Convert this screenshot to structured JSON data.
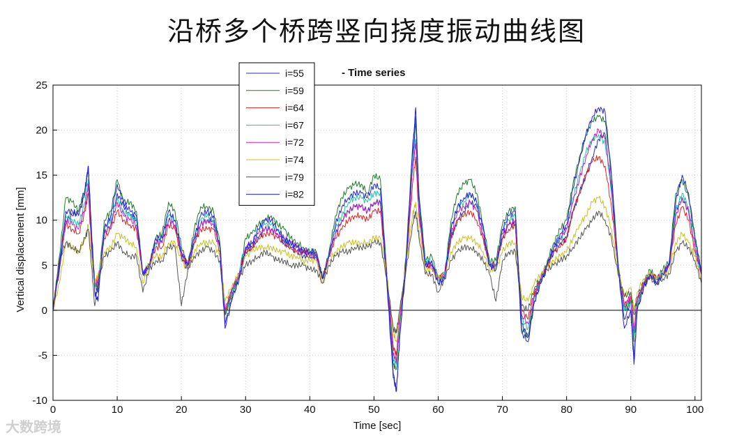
{
  "page": {
    "title": "沿桥多个桥跨竖向挠度振动曲线图",
    "watermark": "大数跨境"
  },
  "chart_data": {
    "type": "line",
    "title": "- Time series",
    "xlabel": "Time [sec]",
    "ylabel": "Vertical displacement [mm]",
    "xlim": [
      0,
      101
    ],
    "ylim": [
      -10,
      25
    ],
    "xticks": [
      0,
      10,
      20,
      30,
      40,
      50,
      60,
      70,
      80,
      90,
      100
    ],
    "yticks": [
      -10,
      -5,
      0,
      5,
      10,
      15,
      20,
      25
    ],
    "grid": true,
    "legend_position": "top-left",
    "x": [
      0,
      1,
      2,
      3,
      4,
      5,
      5.5,
      6,
      6.5,
      7,
      8,
      9,
      10,
      11,
      12,
      13,
      14,
      15,
      16,
      17,
      18,
      19,
      20,
      21,
      22,
      23,
      24,
      25,
      26,
      26.8,
      28,
      29,
      30,
      31,
      32,
      33,
      34,
      35,
      36,
      37,
      38,
      39,
      40,
      41,
      42,
      43,
      44,
      45,
      46,
      47,
      48,
      49,
      50,
      51,
      52,
      53,
      53.5,
      54,
      55,
      56,
      56.5,
      57,
      58,
      59,
      60,
      61,
      62,
      63,
      64,
      65,
      66,
      67,
      68,
      69,
      70,
      71,
      72,
      73,
      74,
      75,
      76,
      77,
      78,
      79,
      80,
      81,
      82,
      83,
      84,
      85,
      86,
      87,
      88,
      89,
      90,
      90.5,
      91,
      92,
      93,
      94,
      95,
      96,
      97,
      98,
      99,
      100,
      101
    ],
    "series": [
      {
        "name": "i=55",
        "color": "#1f2fbf",
        "values": [
          0,
          4.5,
          10,
          10.5,
          11,
          13.5,
          16,
          9,
          3,
          2,
          8.5,
          9.5,
          13,
          11.5,
          10.5,
          10,
          4,
          5,
          7.5,
          7.5,
          10,
          9.5,
          6,
          4.5,
          7.5,
          9.5,
          10,
          10,
          7,
          -1.5,
          1.5,
          3.5,
          6.5,
          7,
          8,
          9,
          9,
          8.5,
          7.5,
          7,
          6.5,
          6,
          6,
          6,
          3.5,
          6,
          8.5,
          10,
          11,
          11.5,
          11.5,
          11,
          12,
          12,
          3,
          -7.5,
          -9,
          -3,
          5,
          16,
          21,
          12,
          5,
          5,
          3,
          3.5,
          8,
          10,
          11,
          12,
          11.5,
          8,
          5,
          5,
          8,
          9.5,
          9.5,
          -2.5,
          -3.5,
          1,
          3,
          5,
          6.5,
          7.5,
          8,
          11,
          13,
          15,
          17,
          19,
          19.5,
          13,
          5,
          -1,
          1,
          -5.5,
          0,
          2.5,
          4,
          3,
          4,
          5,
          11,
          12.5,
          11,
          7,
          4
        ]
      },
      {
        "name": "i=59",
        "color": "#1f7a2a",
        "values": [
          0,
          6,
          12.5,
          12,
          11,
          13.5,
          16,
          8,
          3,
          2.5,
          10,
          11,
          14.5,
          12,
          12,
          11,
          4,
          5,
          8,
          8.5,
          12,
          11,
          7,
          5,
          9,
          11.5,
          11.5,
          11,
          7.5,
          -0.5,
          2,
          4,
          8,
          8.5,
          9.5,
          10,
          10.5,
          9.5,
          9,
          8,
          7.5,
          7,
          6.5,
          6.5,
          3.5,
          6.5,
          10.5,
          12.5,
          13.5,
          14,
          14,
          13,
          15,
          14.5,
          4,
          -6,
          -6.5,
          -1.5,
          6,
          18,
          21.5,
          13,
          5.5,
          6,
          3.5,
          4,
          10,
          13,
          14,
          14.5,
          13,
          9.5,
          5.5,
          5.5,
          9.5,
          11,
          11.5,
          -2,
          -3,
          1.5,
          3.5,
          5.5,
          7.5,
          9,
          10,
          14,
          17,
          19.5,
          21,
          21.5,
          21,
          15,
          5.5,
          0,
          1,
          -3.5,
          0.5,
          3,
          4.5,
          3.5,
          4.5,
          5.5,
          13,
          14.5,
          12.5,
          8,
          4.5
        ]
      },
      {
        "name": "i=64",
        "color": "#e02020",
        "values": [
          0,
          5.5,
          9.5,
          9,
          8.5,
          11,
          13,
          7,
          3,
          3.5,
          8,
          9,
          11,
          10,
          9.5,
          9,
          4,
          5,
          7,
          7,
          9.5,
          9,
          6,
          5,
          7.5,
          9,
          9,
          9,
          6.5,
          0,
          2.5,
          4,
          6.5,
          7,
          8,
          8.5,
          8.5,
          8,
          7.5,
          7,
          6.5,
          6.5,
          6,
          6,
          3.5,
          6,
          8,
          9,
          10,
          10.5,
          10.5,
          10,
          11,
          11,
          4,
          -4,
          -5,
          -1,
          5,
          14,
          17,
          10.5,
          5,
          5,
          3.5,
          4,
          8,
          10,
          10.5,
          11,
          10,
          8,
          5,
          5,
          8,
          9,
          9.5,
          0,
          -1,
          2,
          3.5,
          5,
          6.5,
          7,
          8,
          11,
          13,
          15,
          16.5,
          17,
          16,
          11.5,
          5,
          0.5,
          1.5,
          -2,
          1,
          3,
          4,
          3.5,
          4,
          5,
          9.5,
          11.5,
          10,
          6.5,
          4
        ]
      },
      {
        "name": "i=67",
        "color": "#20c0b0",
        "values": [
          0,
          5.5,
          10.5,
          10,
          9.5,
          12,
          14.5,
          7.5,
          3,
          3,
          9,
          10,
          12.5,
          11,
          10.5,
          10,
          4,
          5,
          7.5,
          8,
          10.5,
          10,
          6.5,
          5,
          8,
          10,
          10.5,
          10,
          7,
          -0.5,
          2,
          4,
          7,
          7.5,
          9,
          9.5,
          9.5,
          9,
          8,
          7.5,
          7,
          6.5,
          6.5,
          6,
          3.5,
          6,
          9,
          10.5,
          12,
          12.5,
          12.5,
          12,
          13,
          13,
          4,
          -5.5,
          -6,
          -1.5,
          5.5,
          16,
          19,
          11.5,
          5.5,
          5.5,
          3.5,
          4,
          9,
          11.5,
          12,
          13,
          12,
          9,
          5,
          5,
          9,
          10,
          10.5,
          -1,
          -2,
          1.5,
          3.5,
          5,
          7,
          8,
          9,
          12.5,
          15,
          17.5,
          19,
          19.5,
          18.5,
          13.5,
          5,
          0,
          1,
          -3,
          0.5,
          3,
          4,
          3.5,
          4,
          5,
          11,
          13,
          11.5,
          7,
          4
        ]
      },
      {
        "name": "i=72",
        "color": "#c020c0",
        "values": [
          0,
          5,
          10,
          9.5,
          9,
          11.5,
          14,
          7.5,
          3,
          3,
          8.5,
          9.5,
          12,
          10.5,
          10,
          9.5,
          4,
          5,
          7.5,
          7.5,
          10,
          9.5,
          6.5,
          5,
          8,
          9.5,
          10,
          9.5,
          7,
          0,
          2.5,
          4,
          7,
          7.5,
          8.5,
          9,
          9,
          8.5,
          8,
          7.5,
          7,
          6.5,
          6.5,
          6,
          3.5,
          6,
          8.5,
          10,
          11,
          11.5,
          11.5,
          11,
          12,
          12,
          4,
          -5,
          -5.5,
          -1,
          5.5,
          15.5,
          18.5,
          11,
          5,
          5,
          3.5,
          4,
          8.5,
          11,
          11.5,
          12,
          11,
          8.5,
          5,
          5,
          8.5,
          9.5,
          10,
          -0.5,
          -1.5,
          1.5,
          3.5,
          5,
          7,
          8,
          9,
          12,
          14.5,
          17,
          19,
          20,
          19,
          14,
          5,
          0.5,
          1.5,
          -2.5,
          1,
          3,
          4,
          3.5,
          4,
          5,
          10.5,
          12.5,
          11,
          7,
          4
        ]
      },
      {
        "name": "i=74",
        "color": "#c8c020",
        "values": [
          0,
          3,
          7.5,
          7,
          6.5,
          8,
          9.5,
          6,
          3,
          4,
          6.5,
          7,
          8.5,
          8,
          7.5,
          7,
          3,
          5,
          6,
          6,
          7.5,
          7.5,
          5.5,
          4.5,
          6.5,
          7.5,
          7.5,
          7.5,
          6,
          1,
          3,
          4,
          6,
          6.5,
          7,
          7,
          7,
          6.5,
          6.5,
          6,
          6,
          5.5,
          5.5,
          5.5,
          3,
          5.5,
          6.5,
          7,
          7.5,
          7.5,
          7.5,
          7.5,
          8,
          8,
          4,
          -2.5,
          -3.5,
          0,
          5,
          10.5,
          12,
          9,
          4.5,
          4.5,
          3.5,
          4,
          6.5,
          7.5,
          8,
          8,
          7.5,
          6.5,
          4.5,
          4.5,
          6.5,
          7.5,
          7.5,
          1.5,
          1,
          3,
          4,
          5,
          5.5,
          6,
          6.5,
          8,
          9.5,
          10.5,
          12,
          12.5,
          11.5,
          9,
          4.5,
          1.5,
          2.5,
          0,
          2,
          3.5,
          4,
          3.5,
          4,
          4.5,
          7.5,
          8.5,
          7.5,
          6,
          3.5
        ]
      },
      {
        "name": "i=79",
        "color": "#555555",
        "values": [
          0,
          5.5,
          7.5,
          7,
          6.5,
          8,
          9,
          5,
          0.5,
          3,
          6,
          6.5,
          7.5,
          6.5,
          6,
          6,
          2,
          4.5,
          5.5,
          5.5,
          7,
          7,
          0.5,
          4.5,
          6,
          6.5,
          7,
          6.5,
          5.5,
          -0.5,
          2.5,
          3.5,
          5,
          5.5,
          6,
          6.5,
          6,
          5.5,
          5.5,
          5,
          5,
          5,
          4.5,
          4.5,
          3,
          5,
          6,
          6.5,
          6.5,
          7,
          7,
          7,
          7.5,
          7.5,
          3.5,
          -2,
          -2.5,
          0,
          4.5,
          9.5,
          11,
          8,
          4,
          4,
          2,
          3.5,
          5.5,
          6.5,
          7,
          7,
          6.5,
          5.5,
          4,
          1,
          5.5,
          6.5,
          6.5,
          0.5,
          0,
          2.5,
          3.5,
          4.5,
          5,
          5.5,
          6,
          7,
          8,
          9,
          10,
          11,
          10,
          8,
          4,
          1.5,
          2,
          -0.5,
          1.5,
          3,
          3.5,
          3,
          3.5,
          4,
          6.5,
          7.5,
          7,
          5.5,
          3
        ]
      },
      {
        "name": "i=82",
        "color": "#2020e0",
        "values": [
          0,
          5,
          11,
          11,
          10.5,
          13,
          16,
          8.5,
          2,
          1,
          9,
          10.5,
          14,
          12,
          11,
          10.5,
          4,
          5,
          8,
          8,
          11,
          10,
          6.5,
          5,
          8,
          10.5,
          11,
          10.5,
          7,
          -2,
          1.5,
          3.5,
          7,
          7.5,
          9,
          10,
          10,
          9,
          8,
          7.5,
          7,
          6.5,
          6.5,
          6.5,
          3.5,
          6,
          9.5,
          11.5,
          12.5,
          13,
          13,
          12.5,
          14,
          13.5,
          3.5,
          -7,
          -9,
          -3,
          5.5,
          17.5,
          22.5,
          12.5,
          5,
          5.5,
          3,
          3.5,
          9,
          11.5,
          12.5,
          13,
          12,
          9,
          5,
          4.5,
          9,
          10.5,
          11,
          -1.5,
          -3,
          1,
          3,
          5,
          7,
          8.5,
          9.5,
          13.5,
          16.5,
          19.5,
          21.5,
          22.5,
          22,
          15,
          5,
          -2,
          0,
          -6,
          0,
          2.5,
          4,
          3,
          4,
          5,
          12,
          15,
          13,
          8,
          4
        ]
      }
    ]
  }
}
